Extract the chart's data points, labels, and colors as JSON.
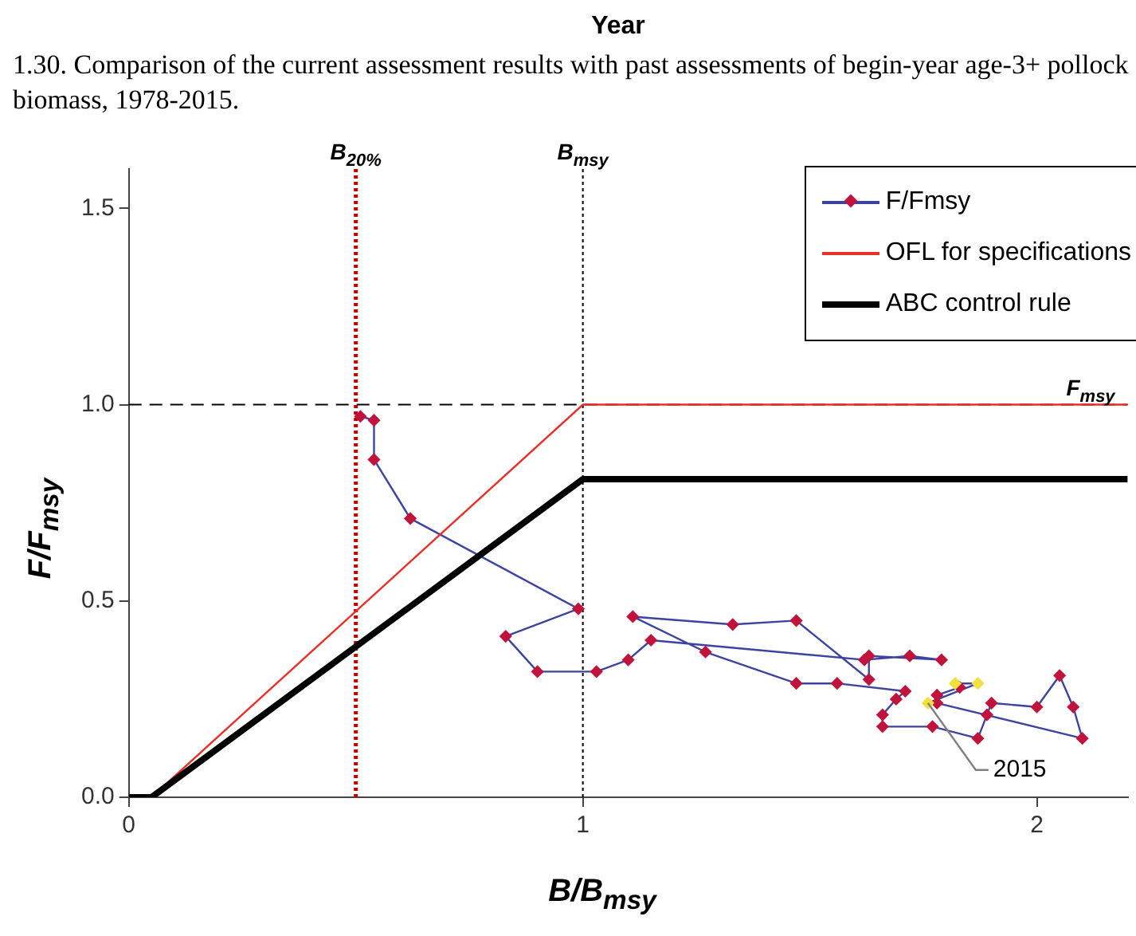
{
  "chart_data": {
    "type": "line",
    "title": "1.30.  Comparison of the current assessment results with past assessments of begin-year age-3+ pollock biomass, 1978-2015.",
    "xlabel": "B/B$_{msy}$",
    "ylabel": "F/F$_{msy}$",
    "annotations": [
      "Year",
      {
        "text": "2015",
        "x": 1.76,
        "y": 0.24
      }
    ],
    "xlim": [
      0,
      2.2
    ],
    "ylim": [
      0,
      1.6
    ],
    "xticks": [
      0,
      1,
      2
    ],
    "yticks": [
      {
        "value": 0,
        "label": "0.0"
      },
      {
        "value": 0.5,
        "label": "0.5"
      },
      {
        "value": 1,
        "label": "1.0"
      },
      {
        "value": 1.5,
        "label": "1.5"
      }
    ],
    "grid": false,
    "legend": "top right",
    "series": [
      {
        "name": "F/Fmsy",
        "type": "line",
        "color": "#3c44a0",
        "marker": "diamond",
        "x": [
          0.51,
          0.54,
          0.54,
          0.62,
          0.99,
          0.83,
          0.9,
          1.03,
          1.1,
          1.15,
          1.62,
          1.72,
          1.79,
          1.63,
          1.63,
          1.47,
          1.33,
          1.11,
          1.27,
          1.47,
          1.56,
          1.71,
          1.69,
          1.66,
          1.66,
          1.77,
          1.87,
          1.89,
          1.9,
          2.0,
          2.05,
          2.08,
          2.1,
          1.78,
          1.78,
          1.83,
          1.82,
          1.87,
          1.76
        ],
        "values": [
          0.97,
          0.96,
          0.86,
          0.71,
          0.48,
          0.41,
          0.32,
          0.32,
          0.35,
          0.4,
          0.35,
          0.36,
          0.35,
          0.36,
          0.3,
          0.45,
          0.44,
          0.46,
          0.37,
          0.29,
          0.29,
          0.27,
          0.25,
          0.21,
          0.18,
          0.18,
          0.15,
          0.21,
          0.24,
          0.23,
          0.31,
          0.23,
          0.15,
          0.24,
          0.26,
          0.28,
          0.29,
          0.29,
          0.24
        ],
        "colors": [
          "#c0143c",
          "#c0143c",
          "#c0143c",
          "#c0143c",
          "#c0143c",
          "#c0143c",
          "#c0143c",
          "#c0143c",
          "#c0143c",
          "#c0143c",
          "#c0143c",
          "#c0143c",
          "#c0143c",
          "#c0143c",
          "#c0143c",
          "#c0143c",
          "#c0143c",
          "#c0143c",
          "#c0143c",
          "#c0143c",
          "#c0143c",
          "#c0143c",
          "#c0143c",
          "#c0143c",
          "#c0143c",
          "#c0143c",
          "#c0143c",
          "#c0143c",
          "#c0143c",
          "#c0143c",
          "#c0143c",
          "#c0143c",
          "#c0143c",
          "#c0143c",
          "#c0143c",
          "#c0143c",
          "#f0e040",
          "#f0e040",
          "#f0e040"
        ]
      },
      {
        "name": "OFL for specifications",
        "type": "line",
        "color": "#e8302a",
        "marker": "none",
        "x": [
          0.05,
          1,
          2.2
        ],
        "values": [
          0,
          1,
          1
        ]
      },
      {
        "name": "ABC control rule",
        "type": "line",
        "color": "#000000",
        "marker": "none",
        "x": [
          0,
          0.05,
          1,
          2.2
        ],
        "values": [
          0,
          0,
          0.81,
          0.81
        ]
      }
    ],
    "ref_lines": [
      {
        "axis": "x",
        "value": 0.5,
        "label": "B$_{20%}$",
        "color": "#c00000",
        "line_style": "dotted"
      },
      {
        "axis": "x",
        "value": 1,
        "label": "B$_{msy}$",
        "color": "#000000",
        "line_style": "dotted"
      },
      {
        "axis": "y",
        "value": 1,
        "label": "F$_{msy}$",
        "color": "#000000",
        "line_style": "dashed"
      }
    ]
  }
}
